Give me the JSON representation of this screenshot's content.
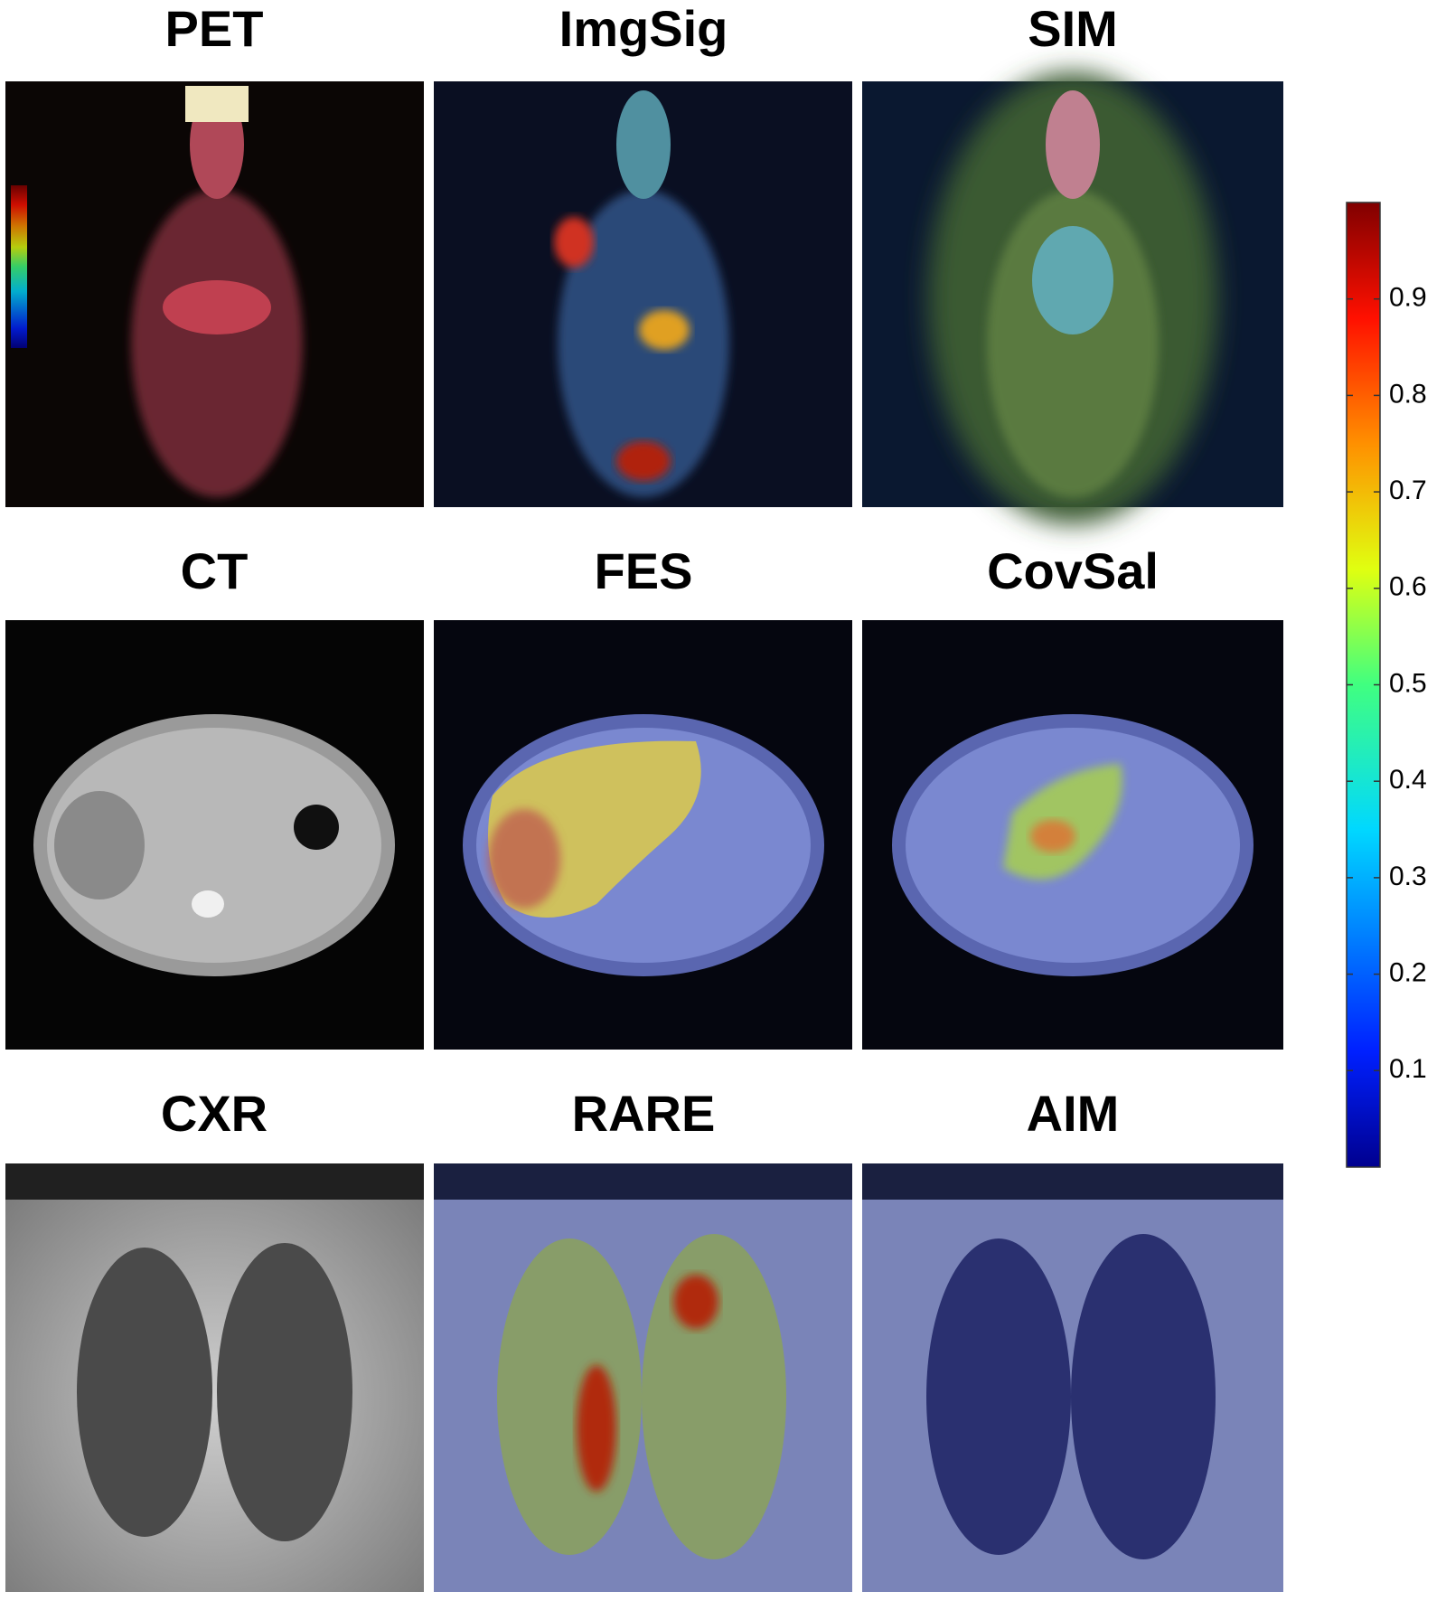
{
  "panels": [
    {
      "title": "PET"
    },
    {
      "title": "ImgSig"
    },
    {
      "title": "SIM"
    },
    {
      "title": "CT"
    },
    {
      "title": "FES"
    },
    {
      "title": "CovSal"
    },
    {
      "title": "CXR"
    },
    {
      "title": "RARE"
    },
    {
      "title": "AIM"
    }
  ],
  "colorbar": {
    "lim": [
      0,
      1
    ],
    "ticks": [
      0.1,
      0.2,
      0.3,
      0.4,
      0.5,
      0.6,
      0.7,
      0.8,
      0.9
    ]
  }
}
